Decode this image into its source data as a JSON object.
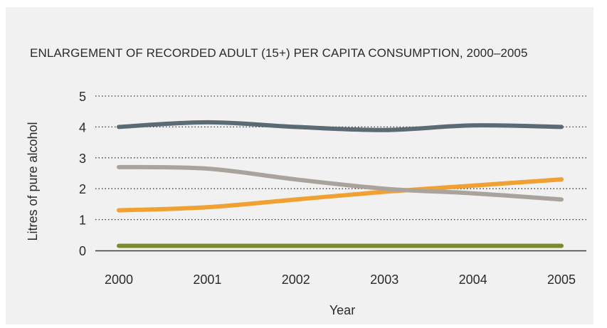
{
  "chart_data": {
    "type": "line",
    "title": "ENLARGEMENT OF RECORDED ADULT (15+) PER CAPITA CONSUMPTION, 2000–2005",
    "xlabel": "Year",
    "ylabel": "Litres of pure alcohol",
    "x": [
      "2000",
      "2001",
      "2002",
      "2003",
      "2004",
      "2005"
    ],
    "y_ticks": [
      "0",
      "1",
      "2",
      "3",
      "4",
      "5"
    ],
    "ylim": [
      0,
      5
    ],
    "grid": "horizontal dotted",
    "series": [
      {
        "color": "#5b6b74",
        "values": [
          4.0,
          4.15,
          4.0,
          3.9,
          4.05,
          4.0
        ]
      },
      {
        "color": "#aaa39c",
        "values": [
          2.7,
          2.65,
          2.3,
          2.0,
          1.85,
          1.65
        ]
      },
      {
        "color": "#f0a132",
        "values": [
          1.3,
          1.4,
          1.65,
          1.9,
          2.1,
          2.3
        ]
      },
      {
        "color": "#7d8a2c",
        "values": [
          0.15,
          0.15,
          0.15,
          0.15,
          0.15,
          0.15
        ]
      }
    ]
  }
}
